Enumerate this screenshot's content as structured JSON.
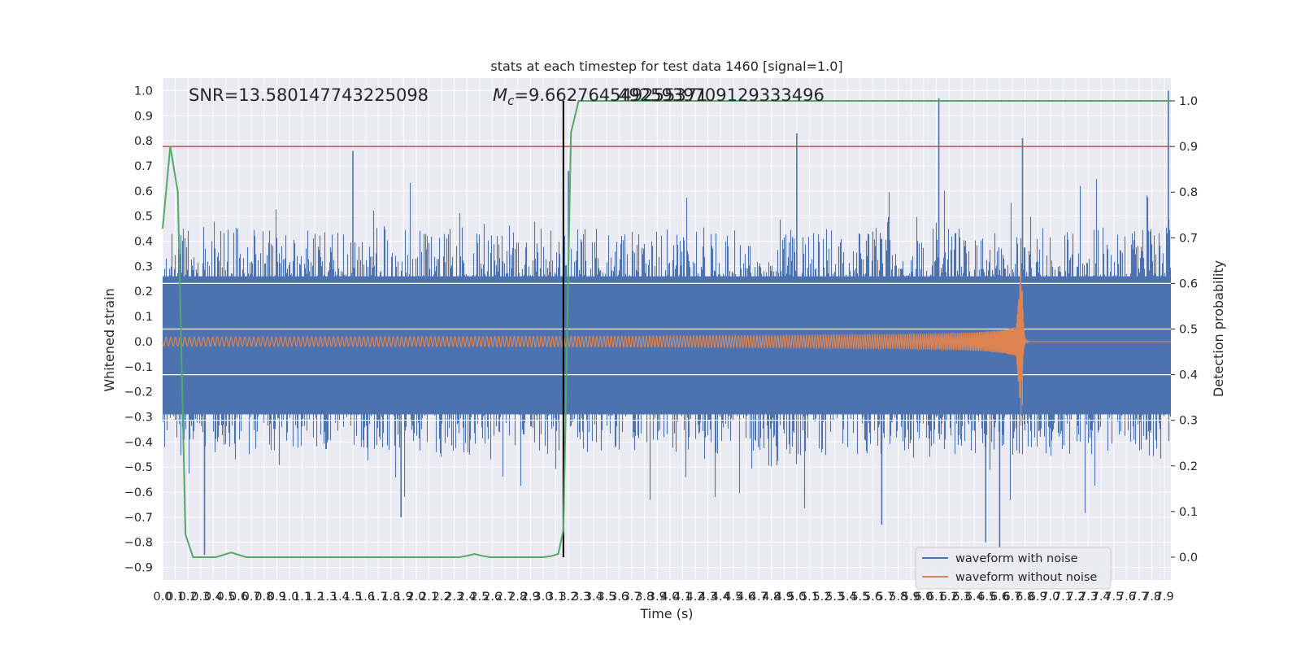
{
  "chart_data": {
    "type": "line",
    "title": "stats at each timestep for test data 1460 [signal=1.0]",
    "xlabel": "Time (s)",
    "ylabel": "Whitened strain",
    "y2label": "Detection probability",
    "xlim": [
      0.0,
      7.95
    ],
    "ylim": [
      -0.95,
      1.05
    ],
    "y2lim": [
      -0.05,
      1.05
    ],
    "x_tick_labels": [
      "0.0",
      "0.1",
      "0.2",
      "0.3",
      "0.4",
      "0.5",
      "0.6",
      "0.7",
      "0.8",
      "0.9",
      "1.0",
      "1.1",
      "1.2",
      "1.3",
      "1.4",
      "1.5",
      "1.6",
      "1.7",
      "1.8",
      "1.9",
      "2.0",
      "2.1",
      "2.2",
      "2.3",
      "2.4",
      "2.5",
      "2.6",
      "2.7",
      "2.8",
      "2.9",
      "3.0",
      "3.1",
      "3.2",
      "3.3",
      "3.4",
      "3.5",
      "3.6",
      "3.7",
      "3.8",
      "3.9",
      "4.0",
      "4.1",
      "4.2",
      "4.3",
      "4.4",
      "4.5",
      "4.6",
      "4.7",
      "4.8",
      "4.9",
      "5.0",
      "5.1",
      "5.2",
      "5.3",
      "5.4",
      "5.5",
      "5.6",
      "5.7",
      "5.8",
      "5.9",
      "6.0",
      "6.1",
      "6.2",
      "6.3",
      "6.4",
      "6.5",
      "6.6",
      "6.7",
      "6.8",
      "6.9",
      "7.0",
      "7.1",
      "7.2",
      "7.3",
      "7.4",
      "7.5",
      "7.6",
      "7.7",
      "7.8",
      "7.9"
    ],
    "y_tick_labels": [
      "−0.9",
      "−0.8",
      "−0.7",
      "−0.6",
      "−0.5",
      "−0.4",
      "−0.3",
      "−0.2",
      "−0.1",
      "0.0",
      "0.1",
      "0.2",
      "0.3",
      "0.4",
      "0.5",
      "0.6",
      "0.7",
      "0.8",
      "0.9",
      "1.0"
    ],
    "y2_tick_labels": [
      "0.0",
      "0.1",
      "0.2",
      "0.3",
      "0.4",
      "0.5",
      "0.6",
      "0.7",
      "0.8",
      "0.9",
      "1.0"
    ],
    "annotations": {
      "snr": "SNR=13.580147743225098",
      "mc_symbol": "M",
      "mc_sub": "c",
      "mc_value": "=9.662764549255371",
      "mc_overlap": "4925939709129333496"
    },
    "threshold_y2": 0.9,
    "vertical_line_x": 3.16,
    "series": [
      {
        "name": "waveform with noise",
        "color": "#4c72b0",
        "envelope_upper": 0.35,
        "envelope_lower": -0.35,
        "extreme_spikes": [
          [
            1.5,
            0.76
          ],
          [
            3.2,
            0.68
          ],
          [
            5.0,
            0.83
          ],
          [
            6.12,
            0.97
          ],
          [
            6.78,
            0.81
          ],
          [
            7.93,
            1.0
          ],
          [
            0.33,
            -0.85
          ],
          [
            6.49,
            -0.8
          ],
          [
            6.6,
            -0.82
          ],
          [
            5.67,
            -0.73
          ],
          [
            1.88,
            -0.7
          ]
        ]
      },
      {
        "name": "waveform without noise",
        "color": "#dd8452",
        "amp_start": 0.018,
        "amp_peak": 0.34,
        "merger_x": 6.78
      },
      {
        "name": "detection probability",
        "color": "#55a868",
        "axis": "y2",
        "x": [
          0.0,
          0.06,
          0.12,
          0.18,
          0.24,
          0.3,
          0.36,
          0.42,
          0.48,
          0.54,
          0.6,
          0.66,
          0.72,
          0.9,
          1.2,
          1.5,
          1.8,
          2.1,
          2.16,
          2.22,
          2.28,
          2.34,
          2.4,
          2.46,
          2.52,
          2.58,
          2.64,
          2.7,
          2.76,
          2.82,
          2.88,
          2.94,
          3.0,
          3.06,
          3.12,
          3.16,
          3.22,
          3.28,
          3.34,
          3.4,
          3.6,
          4.0,
          5.0,
          6.0,
          7.0,
          7.95
        ],
        "values": [
          0.72,
          0.9,
          0.8,
          0.05,
          0.0,
          0.0,
          0.0,
          0.0,
          0.005,
          0.01,
          0.005,
          0.0,
          0.0,
          0.0,
          0.0,
          0.0,
          0.0,
          0.0,
          0.0,
          0.0,
          0.0,
          0.0,
          0.003,
          0.007,
          0.003,
          0.0,
          0.0,
          0.0,
          0.0,
          0.0,
          0.0,
          0.0,
          0.0,
          0.002,
          0.007,
          0.06,
          0.93,
          1.0,
          1.0,
          1.0,
          1.0,
          1.0,
          1.0,
          1.0,
          1.0,
          1.0
        ]
      },
      {
        "name": "threshold",
        "color": "#c44e52",
        "axis": "y2"
      }
    ],
    "legend": {
      "entries": [
        "waveform with noise",
        "waveform without noise"
      ],
      "placement": "lower-right"
    }
  }
}
